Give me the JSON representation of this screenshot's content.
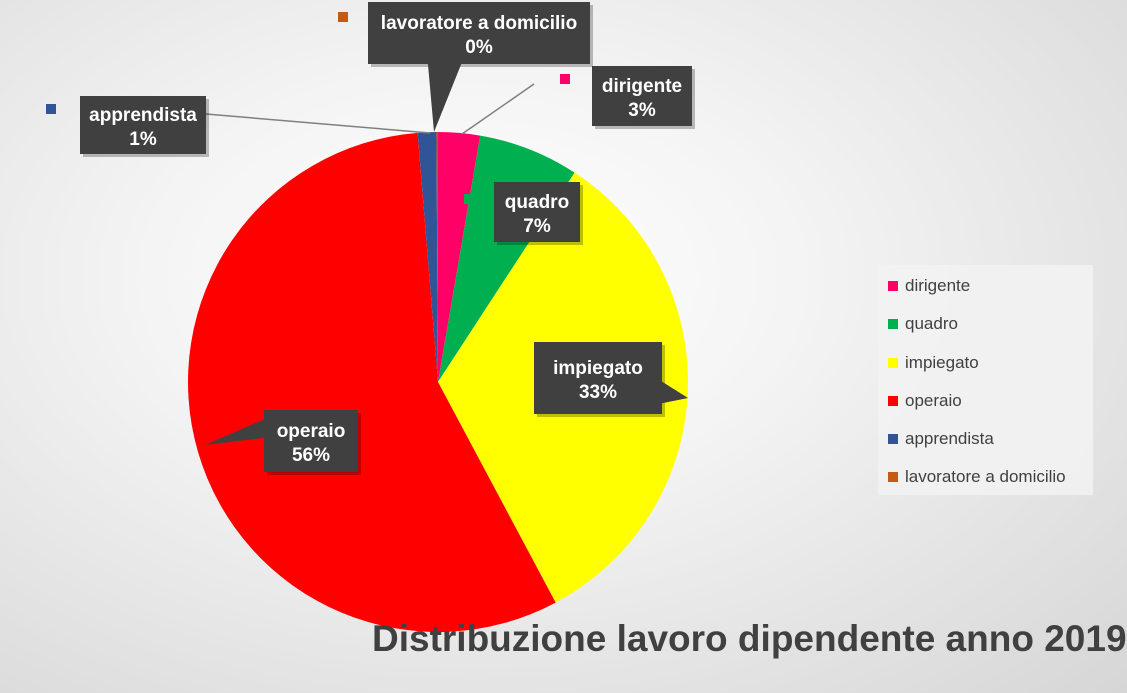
{
  "chart_data": {
    "type": "pie",
    "title": "Distribuzione lavoro dipendente anno 2019",
    "slices": [
      {
        "label": "dirigente",
        "pct_label": "3%",
        "value": 2.7,
        "color": "#ff0066"
      },
      {
        "label": "quadro",
        "pct_label": "7%",
        "value": 6.5,
        "color": "#00b050"
      },
      {
        "label": "impiegato",
        "pct_label": "33%",
        "value": 33.0,
        "color": "#ffff00"
      },
      {
        "label": "operaio",
        "pct_label": "56%",
        "value": 56.5,
        "color": "#ff0000"
      },
      {
        "label": "apprendista",
        "pct_label": "1%",
        "value": 1.2,
        "color": "#2f5597"
      },
      {
        "label": "lavoratore a domicilio",
        "pct_label": "0%",
        "value": 0.1,
        "color": "#c55a11"
      }
    ],
    "legend_position": "right"
  }
}
